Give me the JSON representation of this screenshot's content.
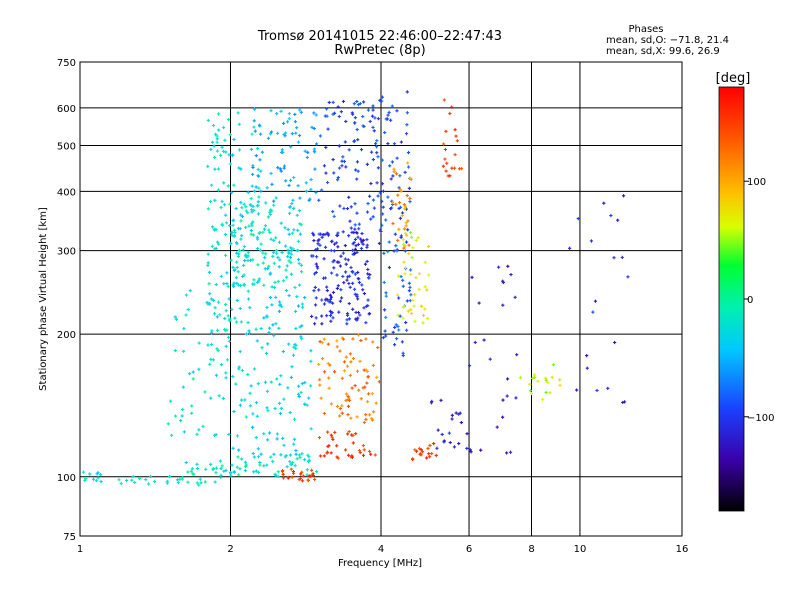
{
  "chart_data": {
    "type": "scatter",
    "title": "Tromsø 20141015 22:46:00–22:47:43",
    "subtitle": "RwPretec (8p)",
    "xlabel": "Frequency [MHz]",
    "ylabel": "Stationary phase Virtual Height [km]",
    "x_scale": "log",
    "y_scale": "log",
    "xlim": [
      1,
      16
    ],
    "ylim": [
      75,
      750
    ],
    "x_ticks": [
      1,
      2,
      4,
      6,
      8,
      10,
      16
    ],
    "x_tick_labels": [
      "1",
      "2",
      "4",
      "6",
      "8",
      "10",
      "16"
    ],
    "y_ticks": [
      75,
      100,
      200,
      300,
      400,
      500,
      600,
      750
    ],
    "y_tick_labels": [
      "75",
      "100",
      "200",
      "300",
      "400",
      "500",
      "600",
      "750"
    ],
    "grid": true,
    "phases_box": {
      "title": "Phases",
      "line_o": "mean, sd,O: −71.8, 21.4",
      "line_x": "mean, sd,X:  99.6, 26.9"
    },
    "colorbar": {
      "label": "[deg]",
      "range": [
        -180,
        180
      ],
      "ticks": [
        100,
        0,
        -100
      ],
      "tick_labels": [
        "100",
        "0",
        "−100"
      ],
      "colormap": "rainbow"
    },
    "clusters": [
      {
        "x": [
          1.0,
          1.1
        ],
        "y": [
          97,
          103
        ],
        "phase": -30,
        "n": 10
      },
      {
        "x": [
          1.1,
          1.6
        ],
        "y": [
          96,
          102
        ],
        "phase": -20,
        "n": 18
      },
      {
        "x": [
          1.6,
          2.0
        ],
        "y": [
          96,
          108
        ],
        "phase": -20,
        "n": 30
      },
      {
        "x": [
          1.5,
          2.0
        ],
        "y": [
          120,
          250
        ],
        "phase": -25,
        "n": 60
      },
      {
        "x": [
          1.8,
          2.0
        ],
        "y": [
          200,
          590
        ],
        "phase": -20,
        "n": 80
      },
      {
        "x": [
          2.0,
          2.3
        ],
        "y": [
          100,
          590
        ],
        "phase": -30,
        "n": 110
      },
      {
        "x": [
          2.0,
          2.8
        ],
        "y": [
          250,
          380
        ],
        "phase": -25,
        "n": 140
      },
      {
        "x": [
          2.3,
          2.9
        ],
        "y": [
          110,
          250
        ],
        "phase": -35,
        "n": 90
      },
      {
        "x": [
          2.2,
          3.0
        ],
        "y": [
          380,
          600
        ],
        "phase": -55,
        "n": 80
      },
      {
        "x": [
          2.0,
          3.0
        ],
        "y": [
          100,
          112
        ],
        "phase": -20,
        "n": 40
      },
      {
        "x": [
          2.5,
          3.0
        ],
        "y": [
          98,
          104
        ],
        "phase": 150,
        "n": 25
      },
      {
        "x": [
          2.9,
          3.8
        ],
        "y": [
          210,
          330
        ],
        "phase": -115,
        "n": 170
      },
      {
        "x": [
          3.0,
          3.9
        ],
        "y": [
          330,
          630
        ],
        "phase": -100,
        "n": 90
      },
      {
        "x": [
          3.0,
          4.0
        ],
        "y": [
          130,
          200
        ],
        "phase": 120,
        "n": 80
      },
      {
        "x": [
          3.0,
          3.9
        ],
        "y": [
          108,
          125
        ],
        "phase": 150,
        "n": 35
      },
      {
        "x": [
          3.9,
          4.6
        ],
        "y": [
          300,
          650
        ],
        "phase": -100,
        "n": 70
      },
      {
        "x": [
          4.0,
          4.6
        ],
        "y": [
          180,
          300
        ],
        "phase": -90,
        "n": 40
      },
      {
        "x": [
          4.2,
          4.6
        ],
        "y": [
          300,
          460
        ],
        "phase": 110,
        "n": 30
      },
      {
        "x": [
          4.3,
          5.0
        ],
        "y": [
          210,
          330
        ],
        "phase": 65,
        "n": 40
      },
      {
        "x": [
          4.6,
          5.2
        ],
        "y": [
          108,
          118
        ],
        "phase": 150,
        "n": 18
      },
      {
        "x": [
          5.0,
          6.0
        ],
        "y": [
          110,
          150
        ],
        "phase": -120,
        "n": 20
      },
      {
        "x": [
          5.3,
          5.8
        ],
        "y": [
          430,
          630
        ],
        "phase": 150,
        "n": 20
      },
      {
        "x": [
          6.0,
          7.5
        ],
        "y": [
          110,
          280
        ],
        "phase": -130,
        "n": 25
      },
      {
        "x": [
          7.6,
          9.2
        ],
        "y": [
          140,
          175
        ],
        "phase": 60,
        "n": 18
      },
      {
        "x": [
          9.5,
          12.5
        ],
        "y": [
          140,
          430
        ],
        "phase": -120,
        "n": 20
      }
    ]
  }
}
